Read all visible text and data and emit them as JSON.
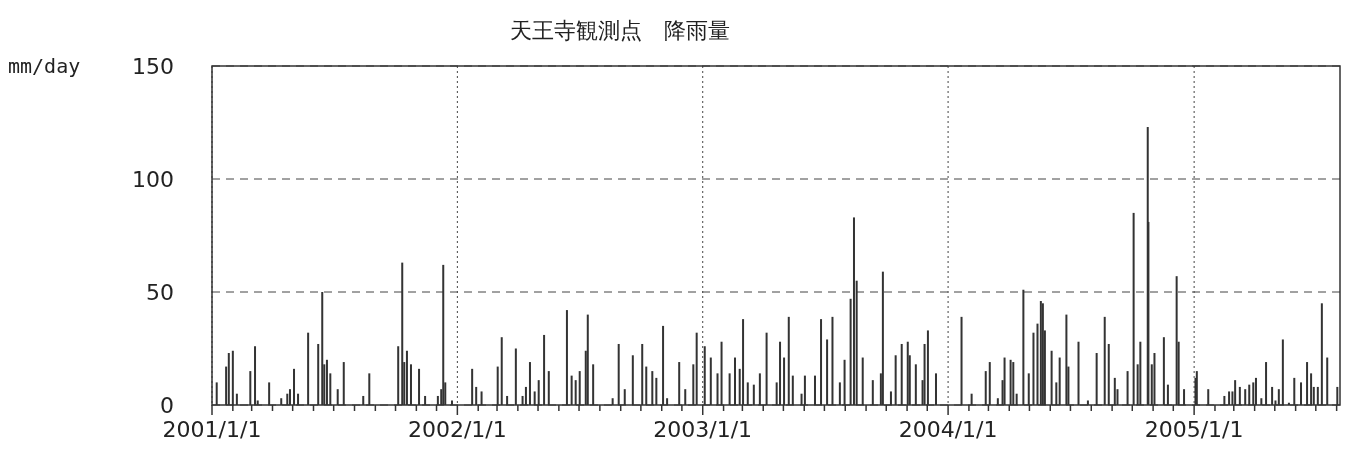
{
  "chart_data": {
    "type": "bar",
    "title": "天王寺観測点　降雨量",
    "ylabel": "mm/day",
    "x": [
      "2001-01-08",
      "2001-01-22",
      "2001-01-26",
      "2001-02-01",
      "2001-02-07",
      "2001-02-27",
      "2001-03-06",
      "2001-03-10",
      "2001-03-27",
      "2001-04-14",
      "2001-04-23",
      "2001-04-27",
      "2001-05-03",
      "2001-05-09",
      "2001-05-24",
      "2001-06-08",
      "2001-06-14",
      "2001-06-17",
      "2001-06-21",
      "2001-06-26",
      "2001-07-07",
      "2001-07-16",
      "2001-08-14",
      "2001-08-23",
      "2001-10-05",
      "2001-10-11",
      "2001-10-14",
      "2001-10-18",
      "2001-10-24",
      "2001-11-05",
      "2001-11-14",
      "2001-12-03",
      "2001-12-08",
      "2001-12-11",
      "2001-12-14",
      "2001-12-24",
      "2002-01-23",
      "2002-01-29",
      "2002-02-06",
      "2002-03-02",
      "2002-03-08",
      "2002-03-16",
      "2002-03-29",
      "2002-04-08",
      "2002-04-13",
      "2002-04-19",
      "2002-04-26",
      "2002-05-02",
      "2002-05-10",
      "2002-05-17",
      "2002-06-13",
      "2002-06-20",
      "2002-06-26",
      "2002-07-02",
      "2002-07-11",
      "2002-07-14",
      "2002-07-22",
      "2002-08-20",
      "2002-08-29",
      "2002-09-07",
      "2002-09-19",
      "2002-10-03",
      "2002-10-09",
      "2002-10-18",
      "2002-10-24",
      "2002-11-03",
      "2002-11-09",
      "2002-11-27",
      "2002-12-06",
      "2002-12-18",
      "2002-12-23",
      "2003-01-04",
      "2003-01-13",
      "2003-01-23",
      "2003-01-29",
      "2003-02-10",
      "2003-02-18",
      "2003-02-25",
      "2003-03-02",
      "2003-03-09",
      "2003-03-18",
      "2003-03-27",
      "2003-04-06",
      "2003-04-21",
      "2003-04-26",
      "2003-05-02",
      "2003-05-09",
      "2003-05-15",
      "2003-05-28",
      "2003-06-02",
      "2003-06-17",
      "2003-06-26",
      "2003-07-05",
      "2003-07-13",
      "2003-07-24",
      "2003-07-31",
      "2003-08-09",
      "2003-08-14",
      "2003-08-18",
      "2003-08-27",
      "2003-09-11",
      "2003-09-23",
      "2003-09-26",
      "2003-10-08",
      "2003-10-15",
      "2003-10-24",
      "2003-11-02",
      "2003-11-05",
      "2003-11-14",
      "2003-11-24",
      "2003-11-27",
      "2003-12-02",
      "2003-12-14",
      "2004-01-21",
      "2004-02-05",
      "2004-02-26",
      "2004-03-03",
      "2004-03-15",
      "2004-03-22",
      "2004-03-25",
      "2004-04-03",
      "2004-04-07",
      "2004-04-12",
      "2004-04-22",
      "2004-04-30",
      "2004-05-07",
      "2004-05-13",
      "2004-05-18",
      "2004-05-21",
      "2004-05-24",
      "2004-06-03",
      "2004-06-10",
      "2004-06-15",
      "2004-06-25",
      "2004-06-28",
      "2004-07-13",
      "2004-07-27",
      "2004-08-09",
      "2004-08-21",
      "2004-08-27",
      "2004-09-05",
      "2004-09-09",
      "2004-09-24",
      "2004-10-03",
      "2004-10-09",
      "2004-10-13",
      "2004-10-24",
      "2004-10-25",
      "2004-10-30",
      "2004-11-03",
      "2004-11-17",
      "2004-11-23",
      "2004-12-06",
      "2004-12-09",
      "2004-12-17",
      "2005-01-03",
      "2005-01-05",
      "2005-01-22",
      "2005-02-15",
      "2005-02-22",
      "2005-02-27",
      "2005-03-03",
      "2005-03-10",
      "2005-03-18",
      "2005-03-24",
      "2005-03-30",
      "2005-04-03",
      "2005-04-11",
      "2005-04-18",
      "2005-04-27",
      "2005-05-02",
      "2005-05-07",
      "2005-05-13",
      "2005-05-22",
      "2005-05-30",
      "2005-06-09",
      "2005-06-18",
      "2005-06-24",
      "2005-06-28",
      "2005-07-04",
      "2005-07-10",
      "2005-07-18",
      "2005-08-02"
    ],
    "values": [
      10,
      17,
      23,
      24,
      5,
      15,
      26,
      2,
      10,
      3,
      5,
      7,
      16,
      5,
      32,
      27,
      50,
      18,
      20,
      14,
      7,
      19,
      4,
      14,
      26,
      63,
      19,
      24,
      18,
      16,
      4,
      4,
      7,
      62,
      10,
      2,
      16,
      8,
      6,
      17,
      30,
      4,
      25,
      4,
      8,
      19,
      6,
      11,
      31,
      15,
      42,
      13,
      11,
      15,
      24,
      40,
      18,
      3,
      27,
      7,
      22,
      27,
      17,
      15,
      12,
      35,
      3,
      19,
      7,
      18,
      32,
      26,
      21,
      14,
      28,
      14,
      21,
      16,
      38,
      10,
      9,
      14,
      32,
      10,
      28,
      21,
      39,
      13,
      5,
      13,
      13,
      38,
      29,
      39,
      10,
      20,
      47,
      83,
      55,
      21,
      11,
      14,
      59,
      6,
      22,
      27,
      28,
      22,
      18,
      11,
      27,
      33,
      14,
      39,
      5,
      15,
      19,
      3,
      11,
      21,
      20,
      19,
      5,
      51,
      14,
      32,
      36,
      46,
      45,
      33,
      24,
      10,
      21,
      40,
      17,
      28,
      2,
      23,
      39,
      27,
      12,
      7,
      15,
      85,
      18,
      28,
      123,
      81,
      18,
      23,
      30,
      9,
      57,
      28,
      7,
      12,
      15,
      7,
      4,
      6,
      6,
      11,
      8,
      7,
      9,
      10,
      12,
      3,
      19,
      8,
      2,
      7,
      29,
      1,
      12,
      10,
      19,
      14,
      8,
      8,
      45,
      21,
      8
    ],
    "color": "#333333",
    "xlim": [
      "2001-01-01",
      "2005-08-06"
    ],
    "xticks": [
      {
        "value": "2001-01-01",
        "label": "2001/1/1"
      },
      {
        "value": "2001-02-01",
        "label": null
      },
      {
        "value": "2001-03-01",
        "label": null
      },
      {
        "value": "2001-04-01",
        "label": null
      },
      {
        "value": "2001-05-01",
        "label": null
      },
      {
        "value": "2001-06-01",
        "label": null
      },
      {
        "value": "2001-07-01",
        "label": null
      },
      {
        "value": "2001-08-01",
        "label": null
      },
      {
        "value": "2001-09-01",
        "label": null
      },
      {
        "value": "2001-10-01",
        "label": null
      },
      {
        "value": "2001-11-01",
        "label": null
      },
      {
        "value": "2001-12-01",
        "label": null
      },
      {
        "value": "2002-01-01",
        "label": "2002/1/1"
      },
      {
        "value": "2002-02-01",
        "label": null
      },
      {
        "value": "2002-03-01",
        "label": null
      },
      {
        "value": "2002-04-01",
        "label": null
      },
      {
        "value": "2002-05-01",
        "label": null
      },
      {
        "value": "2002-06-01",
        "label": null
      },
      {
        "value": "2002-07-01",
        "label": null
      },
      {
        "value": "2002-08-01",
        "label": null
      },
      {
        "value": "2002-09-01",
        "label": null
      },
      {
        "value": "2002-10-01",
        "label": null
      },
      {
        "value": "2002-11-01",
        "label": null
      },
      {
        "value": "2002-12-01",
        "label": null
      },
      {
        "value": "2003-01-01",
        "label": "2003/1/1"
      },
      {
        "value": "2003-02-01",
        "label": null
      },
      {
        "value": "2003-03-01",
        "label": null
      },
      {
        "value": "2003-04-01",
        "label": null
      },
      {
        "value": "2003-05-01",
        "label": null
      },
      {
        "value": "2003-06-01",
        "label": null
      },
      {
        "value": "2003-07-01",
        "label": null
      },
      {
        "value": "2003-08-01",
        "label": null
      },
      {
        "value": "2003-09-01",
        "label": null
      },
      {
        "value": "2003-10-01",
        "label": null
      },
      {
        "value": "2003-11-01",
        "label": null
      },
      {
        "value": "2003-12-01",
        "label": null
      },
      {
        "value": "2004-01-01",
        "label": "2004/1/1"
      },
      {
        "value": "2004-02-01",
        "label": null
      },
      {
        "value": "2004-03-01",
        "label": null
      },
      {
        "value": "2004-04-01",
        "label": null
      },
      {
        "value": "2004-05-01",
        "label": null
      },
      {
        "value": "2004-06-01",
        "label": null
      },
      {
        "value": "2004-07-01",
        "label": null
      },
      {
        "value": "2004-08-01",
        "label": null
      },
      {
        "value": "2004-09-01",
        "label": null
      },
      {
        "value": "2004-10-01",
        "label": null
      },
      {
        "value": "2004-11-01",
        "label": null
      },
      {
        "value": "2004-12-01",
        "label": null
      },
      {
        "value": "2005-01-01",
        "label": "2005/1/1"
      },
      {
        "value": "2005-02-01",
        "label": null
      },
      {
        "value": "2005-03-01",
        "label": null
      },
      {
        "value": "2005-04-01",
        "label": null
      },
      {
        "value": "2005-05-01",
        "label": null
      },
      {
        "value": "2005-06-01",
        "label": null
      },
      {
        "value": "2005-07-01",
        "label": null
      },
      {
        "value": "2005-08-01",
        "label": null
      }
    ],
    "ylim": [
      0,
      150
    ],
    "yticks": [
      0,
      50,
      100,
      150
    ],
    "grid": true
  }
}
